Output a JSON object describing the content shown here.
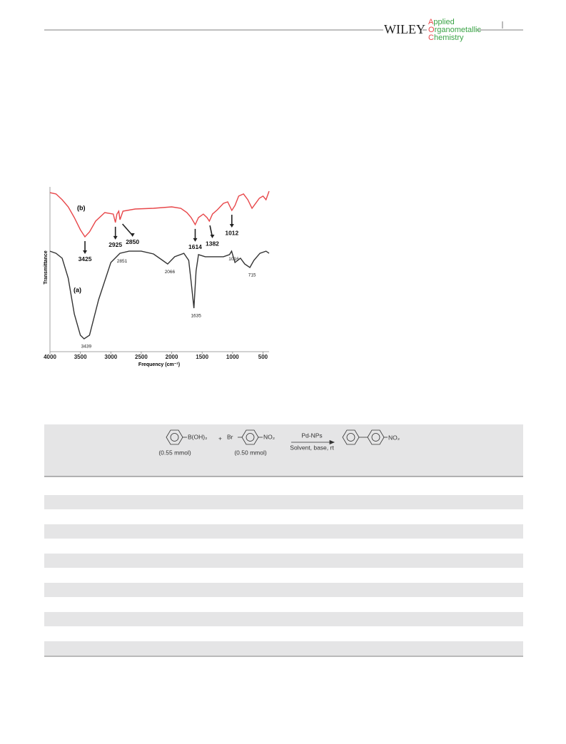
{
  "header": {
    "publisher": "WILEY",
    "journal": [
      "Applied",
      "Organometallic",
      "Chemistry"
    ]
  },
  "figure": {
    "type": "line",
    "xlabel": "Frequency (cm⁻¹)",
    "ylabel": "Transmittance",
    "xlim": [
      4000,
      400
    ],
    "ylim": [
      0,
      100
    ],
    "xticks": [
      4000,
      3500,
      3000,
      2500,
      2000,
      1500,
      1000,
      500
    ],
    "series": [
      {
        "name": "(a)",
        "color": "#333333",
        "x": [
          4000,
          3900,
          3800,
          3700,
          3600,
          3500,
          3439,
          3350,
          3200,
          3000,
          2851,
          2700,
          2500,
          2300,
          2150,
          2066,
          1950,
          1800,
          1720,
          1680,
          1635,
          1600,
          1560,
          1450,
          1300,
          1150,
          1050,
          1016,
          960,
          870,
          800,
          715,
          650,
          550,
          450,
          400
        ],
        "values": [
          61.0,
          59.7,
          56.7,
          44.6,
          22.9,
          10.0,
          7.8,
          10.0,
          31.6,
          54.1,
          59.7,
          61.0,
          61.0,
          59.3,
          55.4,
          53.2,
          57.6,
          59.7,
          55.4,
          42.4,
          26.4,
          48.9,
          58.9,
          57.6,
          57.6,
          57.6,
          58.9,
          61.0,
          54.1,
          56.7,
          53.2,
          51.1,
          55.4,
          59.7,
          61.0,
          59.7
        ],
        "peaks": [
          3439,
          2851,
          2066,
          1635,
          1016,
          715
        ]
      },
      {
        "name": "(b)",
        "color": "#e8474a",
        "x": [
          4000,
          3900,
          3800,
          3700,
          3600,
          3500,
          3425,
          3350,
          3250,
          3100,
          2960,
          2925,
          2900,
          2870,
          2850,
          2800,
          2600,
          2300,
          2000,
          1850,
          1750,
          1680,
          1614,
          1560,
          1480,
          1420,
          1382,
          1330,
          1250,
          1150,
          1080,
          1012,
          960,
          900,
          820,
          750,
          680,
          620,
          560,
          500,
          450,
          400
        ],
        "values": [
          96.5,
          95.7,
          92.2,
          87.9,
          81.4,
          74.0,
          69.7,
          72.7,
          79.2,
          84.4,
          83.5,
          78.4,
          83.5,
          85.3,
          80.1,
          85.3,
          86.6,
          87.0,
          87.9,
          87.0,
          84.4,
          81.4,
          77.1,
          81.4,
          83.5,
          81.4,
          79.2,
          83.5,
          86.1,
          90.0,
          90.9,
          85.7,
          88.7,
          94.4,
          95.7,
          92.2,
          87.0,
          90.0,
          93.1,
          94.4,
          92.2,
          97.4
        ],
        "peaks": [
          3425,
          2925,
          2850,
          1614,
          1382,
          1012
        ]
      }
    ]
  },
  "table": {
    "scheme": {
      "reagent1": "B(OH)₂",
      "reagent1_amount": "(0.55 mmol)",
      "plus": "+",
      "reagent2_left": "Br",
      "reagent2_right": "NO₂",
      "reagent2_amount": "(0.50 mmol)",
      "catalyst": "Pd-NPs",
      "conditions": "Solvent, base, rt",
      "product_group": "NO₂"
    }
  }
}
